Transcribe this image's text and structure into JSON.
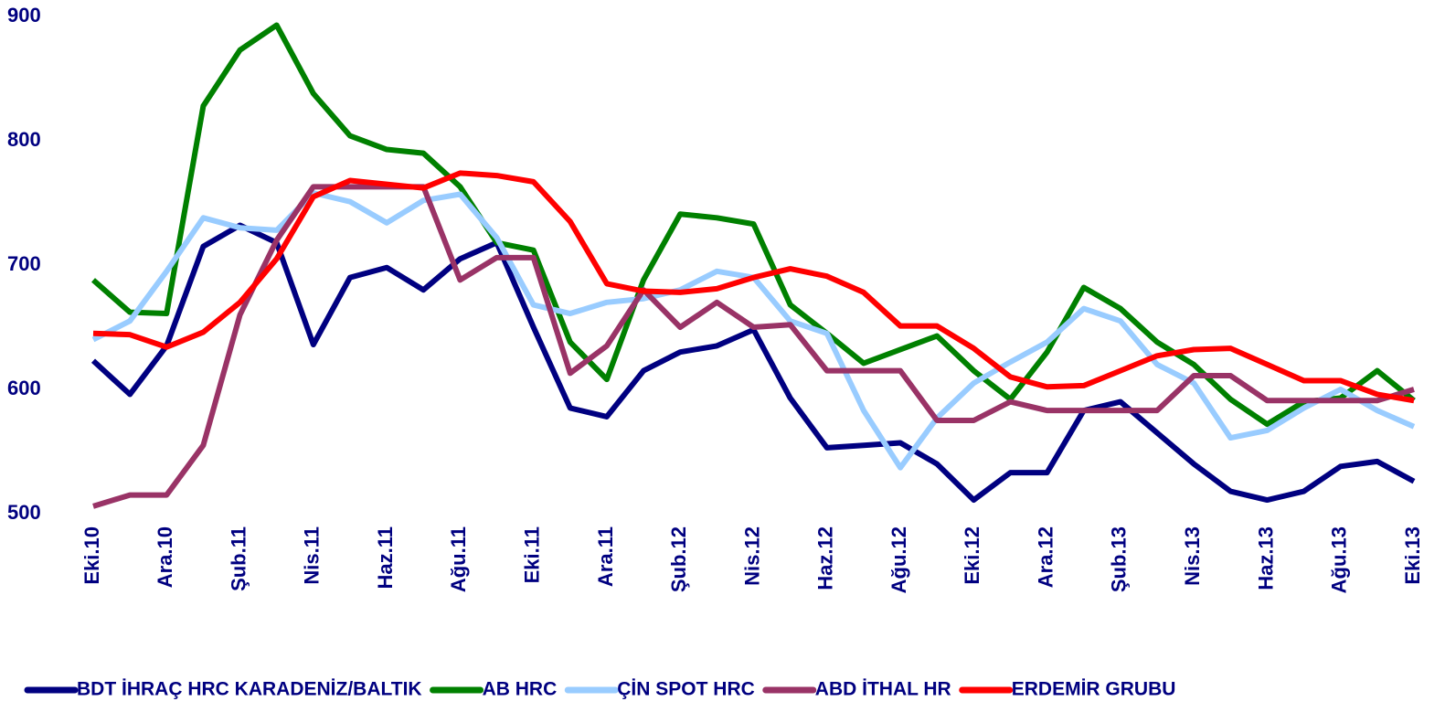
{
  "chart_data": {
    "type": "line",
    "categories": [
      "Eki.10",
      null,
      "Ara.10",
      null,
      "Şub.11",
      null,
      "Nis.11",
      null,
      "Haz.11",
      null,
      "Ağu.11",
      null,
      "Eki.11",
      null,
      "Ara.11",
      null,
      "Şub.12",
      null,
      "Nis.12",
      null,
      "Haz.12",
      null,
      "Ağu.12",
      null,
      "Eki.12",
      null,
      "Ara.12",
      null,
      "Şub.13",
      null,
      "Nis.13",
      null,
      "Haz.13",
      null,
      "Ağu.13",
      null,
      "Eki.13"
    ],
    "series": [
      {
        "name": "BDT İHRAÇ HRC KARADENİZ/BALTIK",
        "color": "#000080",
        "values": [
          623,
          596,
          635,
          715,
          732,
          718,
          636,
          690,
          698,
          680,
          705,
          718,
          650,
          585,
          578,
          615,
          630,
          635,
          648,
          593,
          553,
          555,
          557,
          540,
          511,
          533,
          533,
          583,
          590,
          565,
          540,
          518,
          511,
          518,
          538,
          542,
          526
        ]
      },
      {
        "name": "AB HRC",
        "color": "#008000",
        "values": [
          688,
          662,
          661,
          828,
          873,
          893,
          838,
          804,
          793,
          790,
          763,
          718,
          712,
          638,
          608,
          688,
          741,
          738,
          733,
          668,
          645,
          621,
          632,
          643,
          615,
          592,
          630,
          682,
          665,
          638,
          620,
          592,
          572,
          590,
          593,
          615,
          591
        ]
      },
      {
        "name": "ÇİN SPOT HRC",
        "color": "#99ccff",
        "values": [
          640,
          655,
          695,
          738,
          730,
          728,
          758,
          751,
          734,
          752,
          757,
          722,
          668,
          661,
          670,
          673,
          680,
          695,
          690,
          655,
          645,
          583,
          537,
          577,
          605,
          622,
          638,
          665,
          655,
          620,
          605,
          561,
          567,
          585,
          600,
          583,
          570
        ]
      },
      {
        "name": "ABD İTHAL HR",
        "color": "#993366",
        "values": [
          506,
          515,
          515,
          555,
          660,
          720,
          763,
          763,
          763,
          763,
          688,
          706,
          706,
          613,
          635,
          680,
          650,
          670,
          650,
          652,
          615,
          615,
          615,
          575,
          575,
          590,
          583,
          583,
          583,
          583,
          611,
          611,
          591,
          591,
          591,
          591,
          600
        ]
      },
      {
        "name": "ERDEMİR GRUBU",
        "color": "#ff0000",
        "values": [
          645,
          644,
          634,
          646,
          670,
          705,
          755,
          768,
          765,
          762,
          774,
          772,
          767,
          735,
          685,
          679,
          678,
          681,
          690,
          697,
          691,
          678,
          651,
          651,
          633,
          610,
          602,
          603,
          615,
          627,
          632,
          633,
          620,
          607,
          607,
          596,
          591
        ]
      }
    ],
    "ylim": [
      500,
      900
    ],
    "yticks": [
      500,
      600,
      700,
      800,
      900
    ],
    "legend": "bottom"
  }
}
